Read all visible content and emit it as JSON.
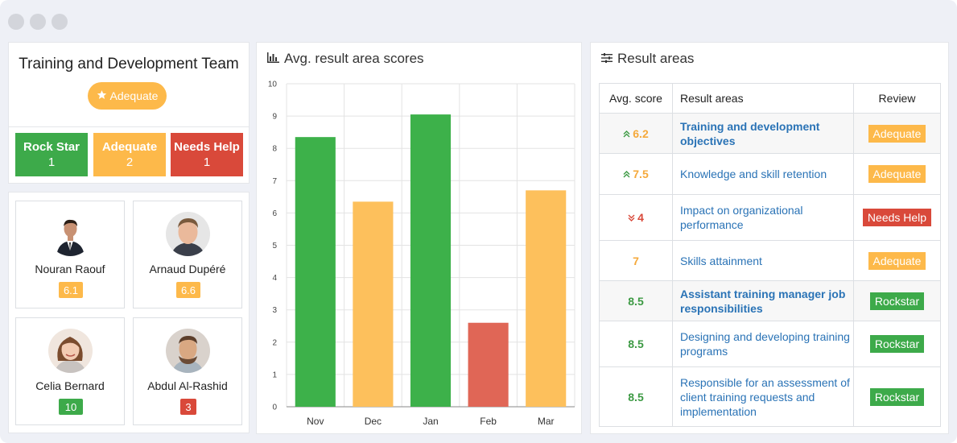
{
  "team": {
    "title": "Training and Development Team",
    "badge_label": "Adequate",
    "badge_icon": "star-icon",
    "stats": [
      {
        "label": "Rock Star",
        "count": "1",
        "color": "#3daa4a"
      },
      {
        "label": "Adequate",
        "count": "2",
        "color": "#fdb94a"
      },
      {
        "label": "Needs Help",
        "count": "1",
        "color": "#d9493a"
      }
    ]
  },
  "members": [
    {
      "name": "Nouran Raouf",
      "score": "6.1",
      "color": "#fdb94a"
    },
    {
      "name": "Arnaud Dupéré",
      "score": "6.6",
      "color": "#fdb94a"
    },
    {
      "name": "Celia Bernard",
      "score": "10",
      "color": "#3daa4a"
    },
    {
      "name": "Abdul Al-Rashid",
      "score": "3",
      "color": "#d9493a"
    }
  ],
  "chart_panel": {
    "title": "Avg. result area scores",
    "icon": "bar-chart-icon"
  },
  "chart_data": {
    "type": "bar",
    "categories": [
      "Nov",
      "Dec",
      "Jan",
      "Feb",
      "Mar"
    ],
    "values": [
      8.35,
      6.35,
      9.05,
      2.6,
      6.7
    ],
    "colors": [
      "#3db14a",
      "#fdc05c",
      "#3db14a",
      "#e06656",
      "#fdc05c"
    ],
    "ylim": [
      0,
      10
    ],
    "yticks": [
      "0",
      "1",
      "2",
      "3",
      "4",
      "5",
      "6",
      "7",
      "8",
      "9",
      "10"
    ],
    "grid": true
  },
  "table_panel": {
    "title": "Result areas",
    "icon": "sliders-icon",
    "headers": {
      "score": "Avg. score",
      "area": "Result areas",
      "review": "Review"
    },
    "rows": [
      {
        "score": "6.2",
        "trend": "up",
        "score_color": "orange",
        "area": "Training and development objectives",
        "bold": true,
        "review": "Adequate",
        "review_color": "#fdb94a"
      },
      {
        "score": "7.5",
        "trend": "up",
        "score_color": "orange",
        "area": "Knowledge and skill retention",
        "bold": false,
        "review": "Adequate",
        "review_color": "#fdb94a"
      },
      {
        "score": "4",
        "trend": "down",
        "score_color": "red",
        "area": "Impact on organizational performance",
        "bold": false,
        "review": "Needs Help",
        "review_color": "#d9493a"
      },
      {
        "score": "7",
        "trend": "",
        "score_color": "orange",
        "area": "Skills attainment",
        "bold": false,
        "review": "Adequate",
        "review_color": "#fdb94a"
      },
      {
        "score": "8.5",
        "trend": "",
        "score_color": "green",
        "area": "Assistant training manager job responsibilities",
        "bold": true,
        "review": "Rockstar",
        "review_color": "#3daa4a"
      },
      {
        "score": "8.5",
        "trend": "",
        "score_color": "green",
        "area": "Designing and developing training programs",
        "bold": false,
        "review": "Rockstar",
        "review_color": "#3daa4a"
      },
      {
        "score": "8.5",
        "trend": "",
        "score_color": "green",
        "area": "Responsible for an assessment of client training requests and implementation",
        "bold": false,
        "review": "Rockstar",
        "review_color": "#3daa4a"
      }
    ]
  }
}
